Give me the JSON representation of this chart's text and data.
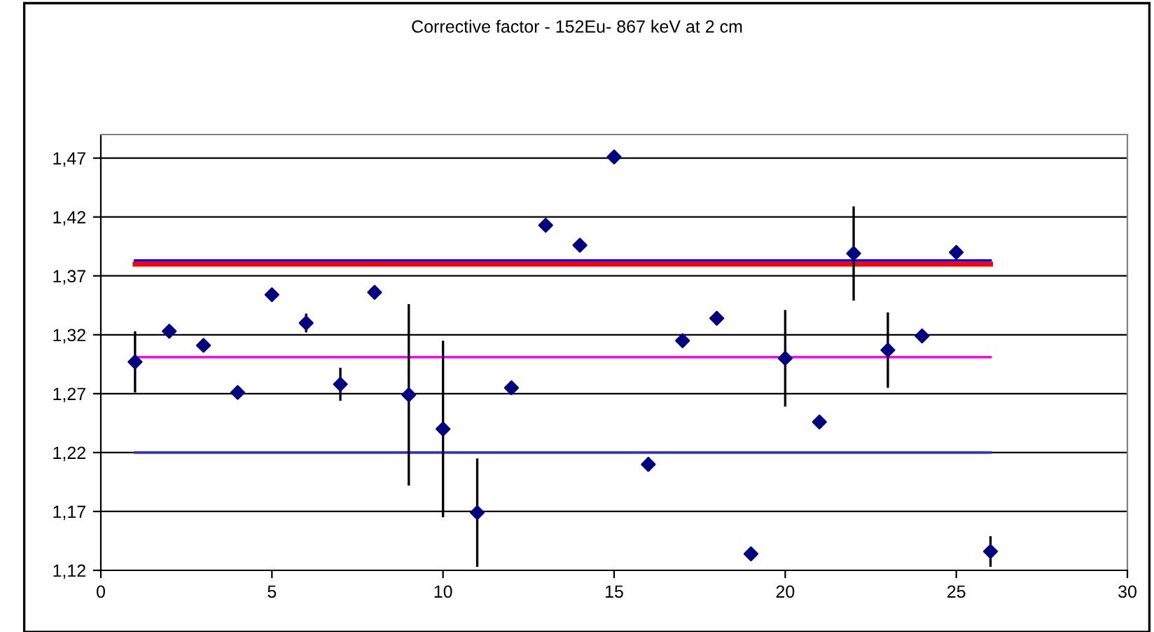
{
  "chart_data": {
    "type": "scatter",
    "title": "Corrective factor - 152Eu- 867 keV at 2 cm",
    "xlim": [
      0,
      30
    ],
    "xticks": [
      0,
      5,
      10,
      15,
      20,
      25,
      30
    ],
    "ylim": [
      1.12,
      1.49
    ],
    "yticks": [
      {
        "value": 1.12,
        "label": "1,12"
      },
      {
        "value": 1.17,
        "label": "1,17"
      },
      {
        "value": 1.22,
        "label": "1,22"
      },
      {
        "value": 1.27,
        "label": "1,27"
      },
      {
        "value": 1.32,
        "label": "1,32"
      },
      {
        "value": 1.37,
        "label": "1,37"
      },
      {
        "value": 1.42,
        "label": "1,42"
      },
      {
        "value": 1.47,
        "label": "1,47"
      }
    ],
    "grid": "y",
    "legend": false,
    "series": [
      {
        "type": "line",
        "color": "#0000ff",
        "x": [
          1,
          26
        ],
        "values": [
          1.383,
          1.383
        ]
      },
      {
        "type": "line",
        "color": "#ff0000",
        "x": [
          1,
          26
        ],
        "values": [
          1.38,
          1.38
        ]
      },
      {
        "type": "line",
        "color": "#ff00ff",
        "x": [
          1,
          26
        ],
        "values": [
          1.301,
          1.301
        ]
      },
      {
        "type": "line",
        "color": "#3333cc",
        "x": [
          1,
          26
        ],
        "values": [
          1.22,
          1.22
        ]
      },
      {
        "color": "#000080",
        "marker": "diamond",
        "x": [
          1,
          2,
          3,
          4,
          5,
          6,
          7,
          8,
          9,
          10,
          11,
          12,
          13,
          14,
          15,
          16,
          17,
          18,
          19,
          20,
          21,
          22,
          23,
          24,
          25,
          26
        ],
        "values": [
          1.297,
          1.323,
          1.311,
          1.271,
          1.354,
          1.33,
          1.278,
          1.356,
          1.269,
          1.24,
          1.169,
          1.275,
          1.413,
          1.396,
          1.471,
          1.21,
          1.315,
          1.334,
          1.134,
          1.3,
          1.246,
          1.389,
          1.307,
          1.319,
          1.39,
          1.136
        ],
        "errors": [
          0.026,
          null,
          null,
          null,
          null,
          0.008,
          0.014,
          null,
          0.077,
          0.075,
          0.046,
          null,
          null,
          null,
          null,
          0.006,
          null,
          null,
          null,
          0.041,
          null,
          0.04,
          0.032,
          null,
          null,
          0.013
        ]
      }
    ]
  }
}
